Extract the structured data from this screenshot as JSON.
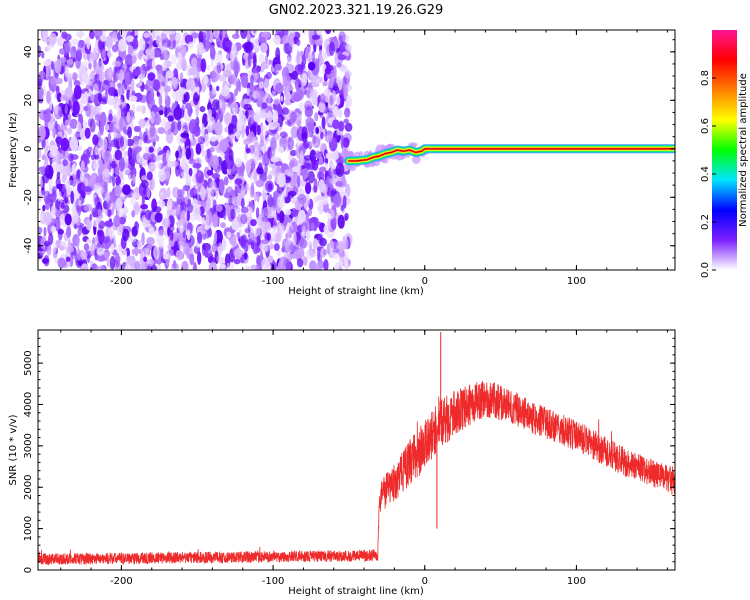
{
  "title": "GN02.2023.321.19.26.G29",
  "chart_data": [
    {
      "type": "heatmap",
      "xlabel": "Height of straight line (km)",
      "ylabel": "Frequency (Hz)",
      "xlim": [
        -255,
        165
      ],
      "ylim": [
        -50,
        49
      ],
      "xticks": [
        -200,
        -100,
        0,
        100
      ],
      "yticks": [
        -40,
        -20,
        0,
        20,
        40
      ],
      "xtick_labels": [
        "-200",
        "-100",
        "0",
        "100"
      ],
      "ytick_labels": [
        "-40",
        "-20",
        "0",
        "20",
        "40"
      ],
      "noise_region": {
        "x_range": [
          -255,
          -50
        ],
        "y_range": [
          -50,
          49
        ],
        "amplitude_range": [
          0.0,
          0.25
        ]
      },
      "signal_track": [
        {
          "x": -50,
          "y": -5.0
        },
        {
          "x": -45,
          "y": -5.0
        },
        {
          "x": -38,
          "y": -4.5
        },
        {
          "x": -34,
          "y": -3.5
        },
        {
          "x": -30,
          "y": -3.0
        },
        {
          "x": -26,
          "y": -2.0
        },
        {
          "x": -22,
          "y": -1.5
        },
        {
          "x": -18,
          "y": -0.5
        },
        {
          "x": -14,
          "y": -1.0
        },
        {
          "x": -10,
          "y": -0.5
        },
        {
          "x": -6,
          "y": -1.5
        },
        {
          "x": -2,
          "y": -1.0
        },
        {
          "x": 0,
          "y": 0.0
        },
        {
          "x": 165,
          "y": 0.0
        }
      ],
      "signal_amplitude": 0.95,
      "colorbar": {
        "label": "Normalized spectral amplitude",
        "range": [
          0.0,
          1.0
        ],
        "ticks": [
          0.0,
          0.2,
          0.4,
          0.6,
          0.8
        ],
        "tick_labels": [
          "0.0",
          "0.2",
          "0.4",
          "0.6",
          "0.8"
        ],
        "colors": [
          "#ffffff",
          "#7b1fff",
          "#0000ff",
          "#00e5ff",
          "#00ff00",
          "#ffff00",
          "#ff7f00",
          "#ff0000",
          "#ff1493"
        ]
      }
    },
    {
      "type": "line",
      "xlabel": "Height of straight line (km)",
      "ylabel": "SNR (10 * v/v)",
      "xlim": [
        -255,
        165
      ],
      "ylim": [
        0,
        5800
      ],
      "xticks": [
        -200,
        -100,
        0,
        100
      ],
      "yticks": [
        0,
        1000,
        2000,
        3000,
        4000,
        5000
      ],
      "xtick_labels": [
        "-200",
        "-100",
        "0",
        "100"
      ],
      "ytick_labels": [
        "0",
        "1000",
        "2000",
        "3000",
        "4000",
        "5000"
      ],
      "series": [
        {
          "color": "#ee2a2a",
          "x": [
            -255,
            -200,
            -150,
            -100,
            -50,
            -31,
            -30,
            -29,
            -20,
            -10,
            0,
            10,
            20,
            30,
            40,
            50,
            60,
            70,
            80,
            90,
            100,
            110,
            120,
            130,
            140,
            150,
            160,
            165
          ],
          "y": [
            260,
            280,
            300,
            320,
            340,
            360,
            1500,
            1800,
            2100,
            2600,
            3000,
            3500,
            3800,
            4000,
            4150,
            4050,
            3900,
            3700,
            3550,
            3400,
            3250,
            3050,
            2850,
            2650,
            2500,
            2350,
            2200,
            2150
          ],
          "noise_amplitude": [
            140,
            140,
            140,
            140,
            140,
            140,
            300,
            400,
            450,
            550,
            600,
            600,
            550,
            500,
            450,
            450,
            400,
            400,
            380,
            380,
            380,
            360,
            360,
            360,
            340,
            340,
            340,
            340
          ],
          "spikes": [
            {
              "x": 10.5,
              "y": 5750
            },
            {
              "x": 8,
              "y": 1000
            }
          ]
        }
      ]
    }
  ]
}
